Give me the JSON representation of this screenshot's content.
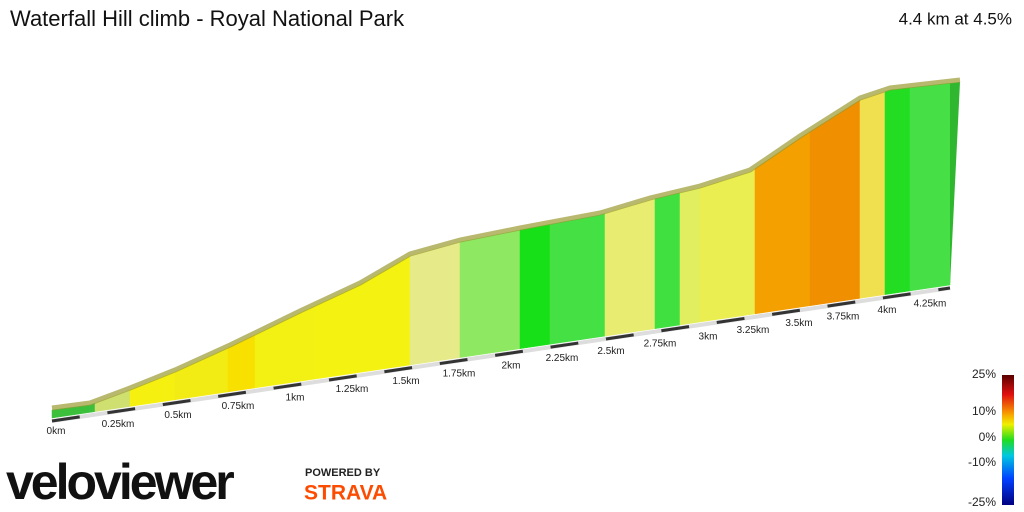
{
  "header": {
    "title": "Waterfall Hill climb - Royal National Park",
    "summary": "4.4 km at 4.5%"
  },
  "distance_labels": [
    "0km",
    "0.25km",
    "0.5km",
    "0.75km",
    "1km",
    "1.25km",
    "1.5km",
    "1.75km",
    "2km",
    "2.25km",
    "2.5km",
    "2.75km",
    "3km",
    "3.25km",
    "3.5km",
    "3.75km",
    "4km",
    "4.25km"
  ],
  "gradient_legend": [
    "25%",
    "10%",
    "0%",
    "-10%",
    "-25%"
  ],
  "branding": {
    "logo": "veloviewer",
    "powered_by": "POWERED BY",
    "partner": "STRAVA"
  }
}
